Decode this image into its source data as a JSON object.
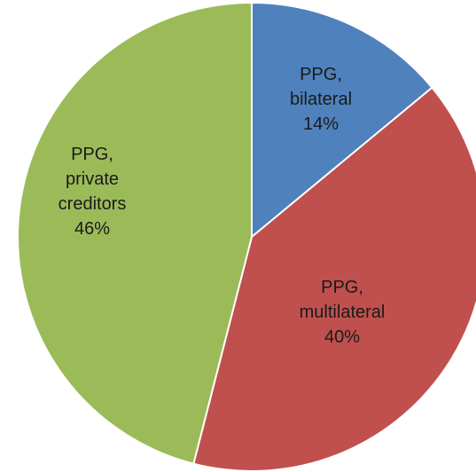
{
  "chart_data": {
    "type": "pie",
    "categories": [
      "PPG, bilateral",
      "PPG, multilateral",
      "PPG, private creditors"
    ],
    "values": [
      14,
      40,
      46
    ],
    "value_labels": [
      "14%",
      "40%",
      "46%"
    ],
    "colors": [
      "#4f81bd",
      "#c0504d",
      "#9bbb59"
    ]
  }
}
